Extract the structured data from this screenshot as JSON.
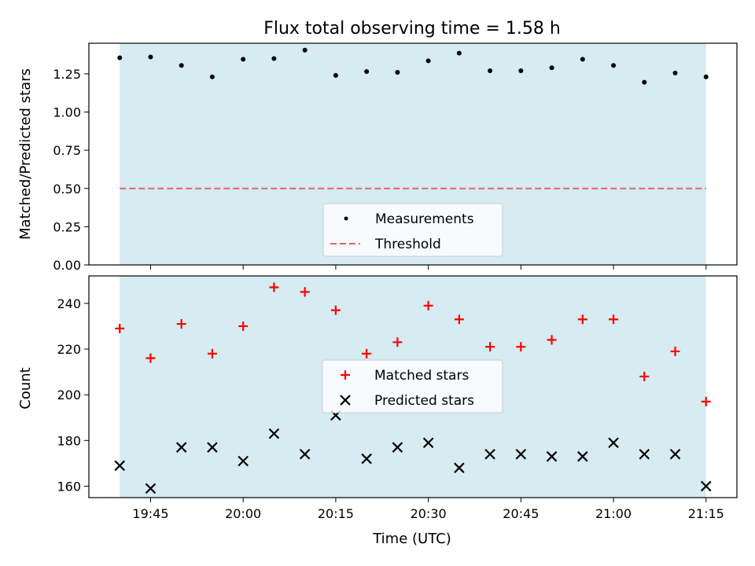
{
  "title": "Flux total observing time = 1.58 h",
  "xlabel": "Time (UTC)",
  "colors": {
    "shade": "#add8e6",
    "threshold": "#e06666",
    "matched": "#ff0000",
    "predicted": "#000000",
    "measurement": "#000000"
  },
  "chart_data": [
    {
      "type": "scatter",
      "ylabel": "Matched/Predicted stars",
      "ylim": [
        0,
        1.45
      ],
      "yticks": [
        0.0,
        0.25,
        0.5,
        0.75,
        1.0,
        1.25
      ],
      "ytick_labels": [
        "0.00",
        "0.25",
        "0.50",
        "0.75",
        "1.00",
        "1.25"
      ],
      "shaded_span": [
        "19:40",
        "21:15"
      ],
      "threshold": 0.5,
      "legend": {
        "placement": "lower-center",
        "entries": [
          "Measurements",
          "Threshold"
        ]
      },
      "series": [
        {
          "name": "Measurements",
          "marker": "dot",
          "x": [
            "19:40",
            "19:45",
            "19:50",
            "19:55",
            "20:00",
            "20:05",
            "20:10",
            "20:15",
            "20:20",
            "20:25",
            "20:30",
            "20:35",
            "20:40",
            "20:45",
            "20:50",
            "20:55",
            "21:00",
            "21:05",
            "21:10",
            "21:15"
          ],
          "values": [
            1.355,
            1.36,
            1.305,
            1.23,
            1.345,
            1.35,
            1.405,
            1.24,
            1.265,
            1.26,
            1.335,
            1.385,
            1.27,
            1.27,
            1.29,
            1.345,
            1.305,
            1.195,
            1.255,
            1.23
          ]
        }
      ]
    },
    {
      "type": "scatter",
      "ylabel": "Count",
      "ylim": [
        155,
        252
      ],
      "yticks": [
        160,
        180,
        200,
        220,
        240
      ],
      "ytick_labels": [
        "160",
        "180",
        "200",
        "220",
        "240"
      ],
      "xlim": [
        "19:35",
        "21:20"
      ],
      "xticks": [
        "19:45",
        "20:00",
        "20:15",
        "20:30",
        "20:45",
        "21:00",
        "21:15"
      ],
      "shaded_span": [
        "19:40",
        "21:15"
      ],
      "legend": {
        "placement": "center",
        "entries": [
          "Matched stars",
          "Predicted stars"
        ]
      },
      "series": [
        {
          "name": "Matched stars",
          "marker": "plus",
          "x": [
            "19:40",
            "19:45",
            "19:50",
            "19:55",
            "20:00",
            "20:05",
            "20:10",
            "20:15",
            "20:20",
            "20:25",
            "20:30",
            "20:35",
            "20:40",
            "20:45",
            "20:50",
            "20:55",
            "21:00",
            "21:05",
            "21:10",
            "21:15"
          ],
          "values": [
            229,
            216,
            231,
            218,
            230,
            247,
            245,
            237,
            218,
            223,
            239,
            233,
            221,
            221,
            224,
            233,
            233,
            208,
            219,
            197
          ]
        },
        {
          "name": "Predicted stars",
          "marker": "x",
          "x": [
            "19:40",
            "19:45",
            "19:50",
            "19:55",
            "20:00",
            "20:05",
            "20:10",
            "20:15",
            "20:20",
            "20:25",
            "20:30",
            "20:35",
            "20:40",
            "20:45",
            "20:50",
            "20:55",
            "21:00",
            "21:05",
            "21:10",
            "21:15"
          ],
          "values": [
            169,
            159,
            177,
            177,
            171,
            183,
            174,
            191,
            172,
            177,
            179,
            168,
            174,
            174,
            173,
            173,
            179,
            174,
            174,
            160
          ]
        }
      ]
    }
  ]
}
